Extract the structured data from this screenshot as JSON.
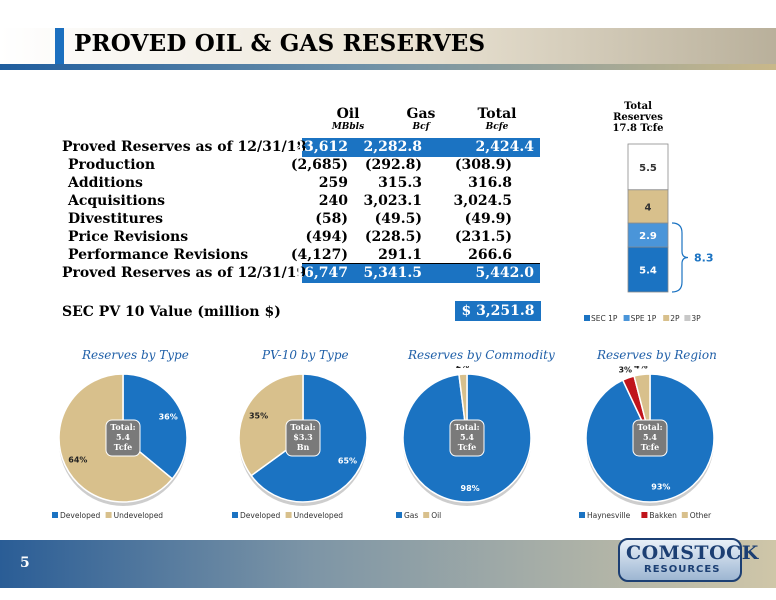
{
  "title": "PROVED OIL & GAS RESERVES",
  "page_number": "5",
  "logo": {
    "line1": "COMSTOCK",
    "line2": "RESOURCES"
  },
  "table": {
    "columns": [
      {
        "name": "Oil",
        "unit": "MBbls"
      },
      {
        "name": "Gas",
        "unit": "Bcf"
      },
      {
        "name": "Total",
        "unit": "Bcfe"
      }
    ],
    "rows": [
      {
        "label": "Proved Reserves as of 12/31/18",
        "oil": "23,612",
        "gas": "2,282.8",
        "total": "2,424.4"
      },
      {
        "label": "Production",
        "oil": "(2,685)",
        "gas": "(292.8)",
        "total": "(308.9)"
      },
      {
        "label": "Additions",
        "oil": "259",
        "gas": "315.3",
        "total": "316.8"
      },
      {
        "label": "Acquisitions",
        "oil": "240",
        "gas": "3,023.1",
        "total": "3,024.5"
      },
      {
        "label": "Divestitures",
        "oil": "(58)",
        "gas": "(49.5)",
        "total": "(49.9)"
      },
      {
        "label": "Price Revisions",
        "oil": "(494)",
        "gas": "(228.5)",
        "total": "(231.5)"
      },
      {
        "label": "Performance Revisions",
        "oil": "(4,127)",
        "gas": "291.1",
        "total": "266.6"
      },
      {
        "label": "Proved Reserves as of 12/31/19",
        "oil": "16,747",
        "gas": "5,341.5",
        "total": "5,442.0"
      }
    ]
  },
  "pv10": {
    "label": "SEC PV 10 Value (million $)",
    "value": "$ 3,251.8"
  },
  "colors": {
    "blue": "#1b73c2",
    "tan": "#d8c08c",
    "red": "#c0141c",
    "navy": "#1c3f73"
  },
  "chart_data": [
    {
      "type": "bar",
      "title": "Total Reserves 17.8 Tcfe",
      "title_lines": [
        "Total",
        "Reserves",
        "17.8 Tcfe"
      ],
      "stacked": true,
      "series": [
        {
          "name": "SEC 1P",
          "value": 5.4,
          "color": "#1b73c2",
          "label": "5.4"
        },
        {
          "name": "SPE 1P",
          "value": 2.9,
          "color": "#4a95d9",
          "label": "2.9"
        },
        {
          "name": "2P",
          "value": 4,
          "color": "#d8c08c",
          "label": "4"
        },
        {
          "name": "3P",
          "value": 5.5,
          "color": "#ffffff",
          "label": "5.5"
        }
      ],
      "legend": [
        "SEC 1P",
        "SPE 1P",
        "2P",
        "3P"
      ],
      "bracket_label": "8.3"
    },
    {
      "type": "pie",
      "title": "Reserves by Type",
      "center_label": [
        "Total:",
        "5.4",
        "Tcfe"
      ],
      "slices": [
        {
          "name": "Developed",
          "value": 36,
          "label": "36%",
          "color": "#1b73c2"
        },
        {
          "name": "Undeveloped",
          "value": 64,
          "label": "64%",
          "color": "#d8c08c"
        }
      ]
    },
    {
      "type": "pie",
      "title": "PV-10 by Type",
      "center_label": [
        "Total:",
        "$3.3",
        "Bn"
      ],
      "slices": [
        {
          "name": "Developed",
          "value": 65,
          "label": "65%",
          "color": "#1b73c2"
        },
        {
          "name": "Undeveloped",
          "value": 35,
          "label": "35%",
          "color": "#d8c08c"
        }
      ]
    },
    {
      "type": "pie",
      "title": "Reserves by Commodity",
      "center_label": [
        "Total:",
        "5.4",
        "Tcfe"
      ],
      "slices": [
        {
          "name": "Gas",
          "value": 98,
          "label": "98%",
          "color": "#1b73c2"
        },
        {
          "name": "Oil",
          "value": 2,
          "label": "2%",
          "color": "#d8c08c"
        }
      ]
    },
    {
      "type": "pie",
      "title": "Reserves by Region",
      "center_label": [
        "Total:",
        "5.4",
        "Tcfe"
      ],
      "slices": [
        {
          "name": "Haynesville",
          "value": 93,
          "label": "93%",
          "color": "#1b73c2"
        },
        {
          "name": "Bakken",
          "value": 3,
          "label": "3%",
          "color": "#c0141c"
        },
        {
          "name": "Other",
          "value": 4,
          "label": "4%",
          "color": "#d8c08c"
        }
      ]
    }
  ]
}
